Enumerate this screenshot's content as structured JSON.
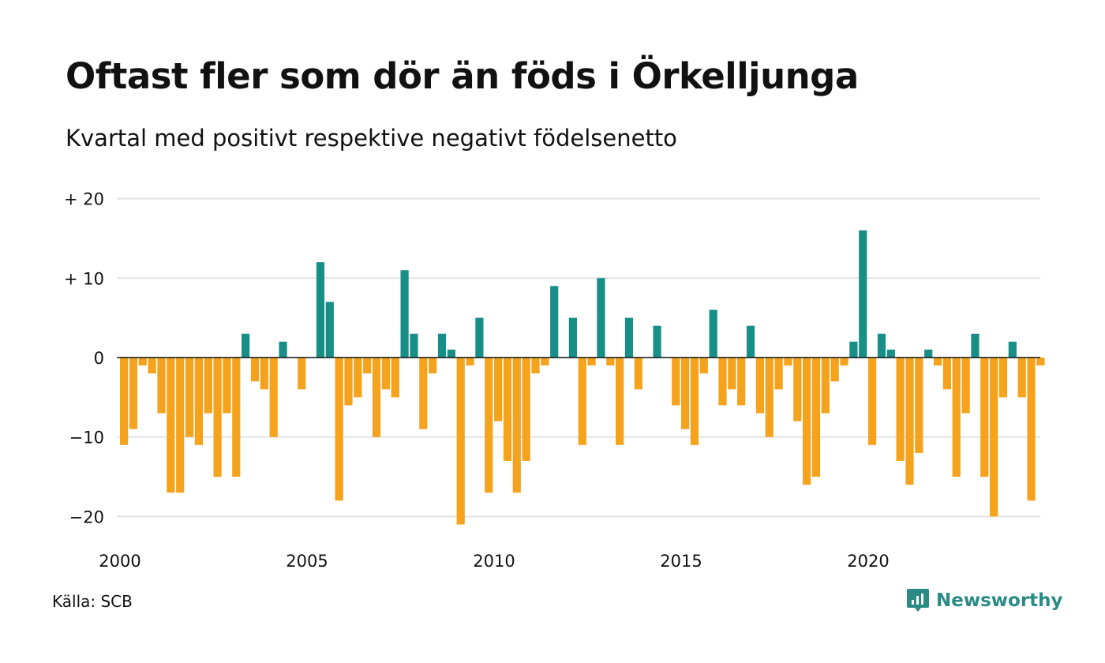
{
  "title": "Oftast fler som dör än föds i Örkelljunga",
  "subtitle": "Kvartal med positivt respektive negativt födelsenetto",
  "source": "Källa: SCB",
  "brand": {
    "name": "Newsworthy",
    "icon": "newsworthy-logo-icon"
  },
  "colors": {
    "positive": "#178f86",
    "negative": "#f5a21d",
    "grid": "#e3e3e3",
    "zero": "#111111"
  },
  "chart_data": {
    "type": "bar",
    "start": {
      "year": 2000,
      "quarter": 1
    },
    "x_ticks": [
      "2000",
      "2005",
      "2010",
      "2015",
      "2020"
    ],
    "y_ticks": [
      {
        "value": 20,
        "label": "+ 20"
      },
      {
        "value": 10,
        "label": "+ 10"
      },
      {
        "value": 0,
        "label": "0"
      },
      {
        "value": -10,
        "label": "−10"
      },
      {
        "value": -20,
        "label": "−20"
      }
    ],
    "ylim": [
      -22,
      20
    ],
    "grid": true,
    "values": [
      -11,
      -9,
      -1,
      -2,
      -7,
      -17,
      -17,
      -10,
      -11,
      -7,
      -15,
      -7,
      -15,
      3,
      -3,
      -4,
      -10,
      2,
      0,
      -4,
      0,
      12,
      7,
      -18,
      -6,
      -5,
      -2,
      -10,
      -4,
      -5,
      11,
      3,
      -9,
      -2,
      3,
      1,
      -21,
      -1,
      5,
      -17,
      -8,
      -13,
      -17,
      -13,
      -2,
      -1,
      9,
      0,
      5,
      -11,
      -1,
      10,
      -1,
      -11,
      5,
      -4,
      0,
      4,
      0,
      -6,
      -9,
      -11,
      -2,
      6,
      -6,
      -4,
      -6,
      4,
      -7,
      -10,
      -4,
      -1,
      -8,
      -16,
      -15,
      -7,
      -3,
      -1,
      2,
      16,
      -11,
      3,
      1,
      -13,
      -16,
      -12,
      1,
      -1,
      -4,
      -15,
      -7,
      3,
      -15,
      -20,
      -5,
      2,
      -5,
      -18,
      -1
    ]
  }
}
